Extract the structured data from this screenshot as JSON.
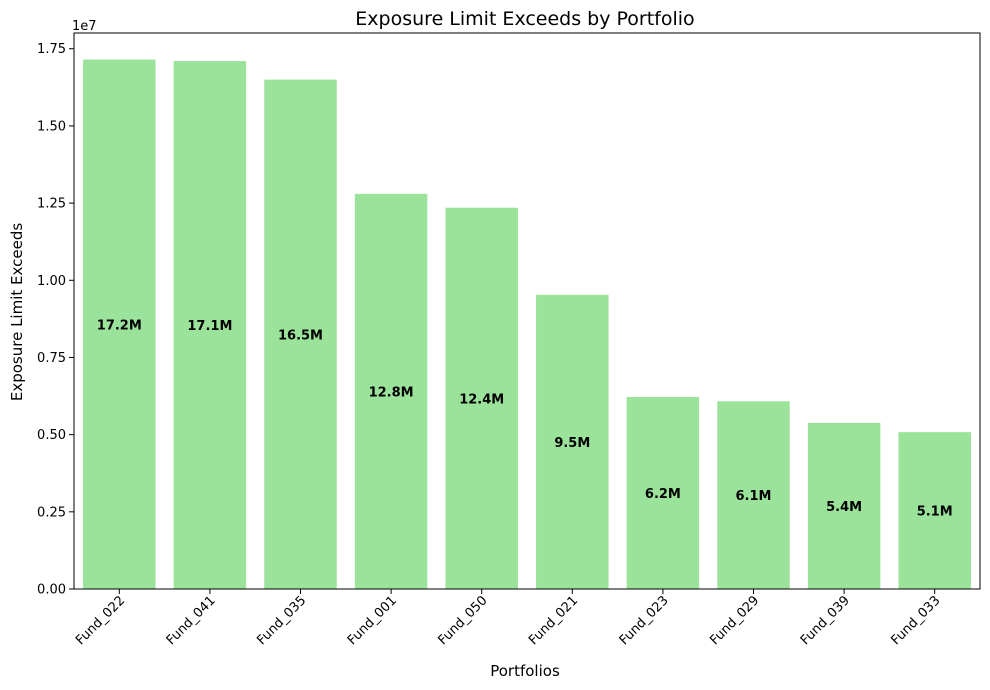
{
  "chart_data": {
    "type": "bar",
    "title": "Exposure Limit Exceeds by Portfolio",
    "xlabel": "Portfolios",
    "ylabel": "Exposure Limit Exceeds",
    "y_offset_label": "1e7",
    "categories": [
      "Fund_022",
      "Fund_041",
      "Fund_035",
      "Fund_001",
      "Fund_050",
      "Fund_021",
      "Fund_023",
      "Fund_029",
      "Fund_039",
      "Fund_033"
    ],
    "values": [
      17150000,
      17100000,
      16500000,
      12800000,
      12350000,
      9530000,
      6220000,
      6080000,
      5380000,
      5080000
    ],
    "data_labels": [
      "17.2M",
      "17.1M",
      "16.5M",
      "12.8M",
      "12.4M",
      "9.5M",
      "6.2M",
      "6.1M",
      "5.4M",
      "5.1M"
    ],
    "ylim": [
      0,
      18010000
    ],
    "y_ticks": [
      0,
      2500000,
      5000000,
      7500000,
      10000000,
      12500000,
      15000000,
      17500000
    ],
    "y_tick_labels": [
      "0.00",
      "0.25",
      "0.50",
      "0.75",
      "1.00",
      "1.25",
      "1.50",
      "1.75"
    ],
    "bar_color": "#9be29b",
    "grid": false,
    "legend": "none"
  }
}
